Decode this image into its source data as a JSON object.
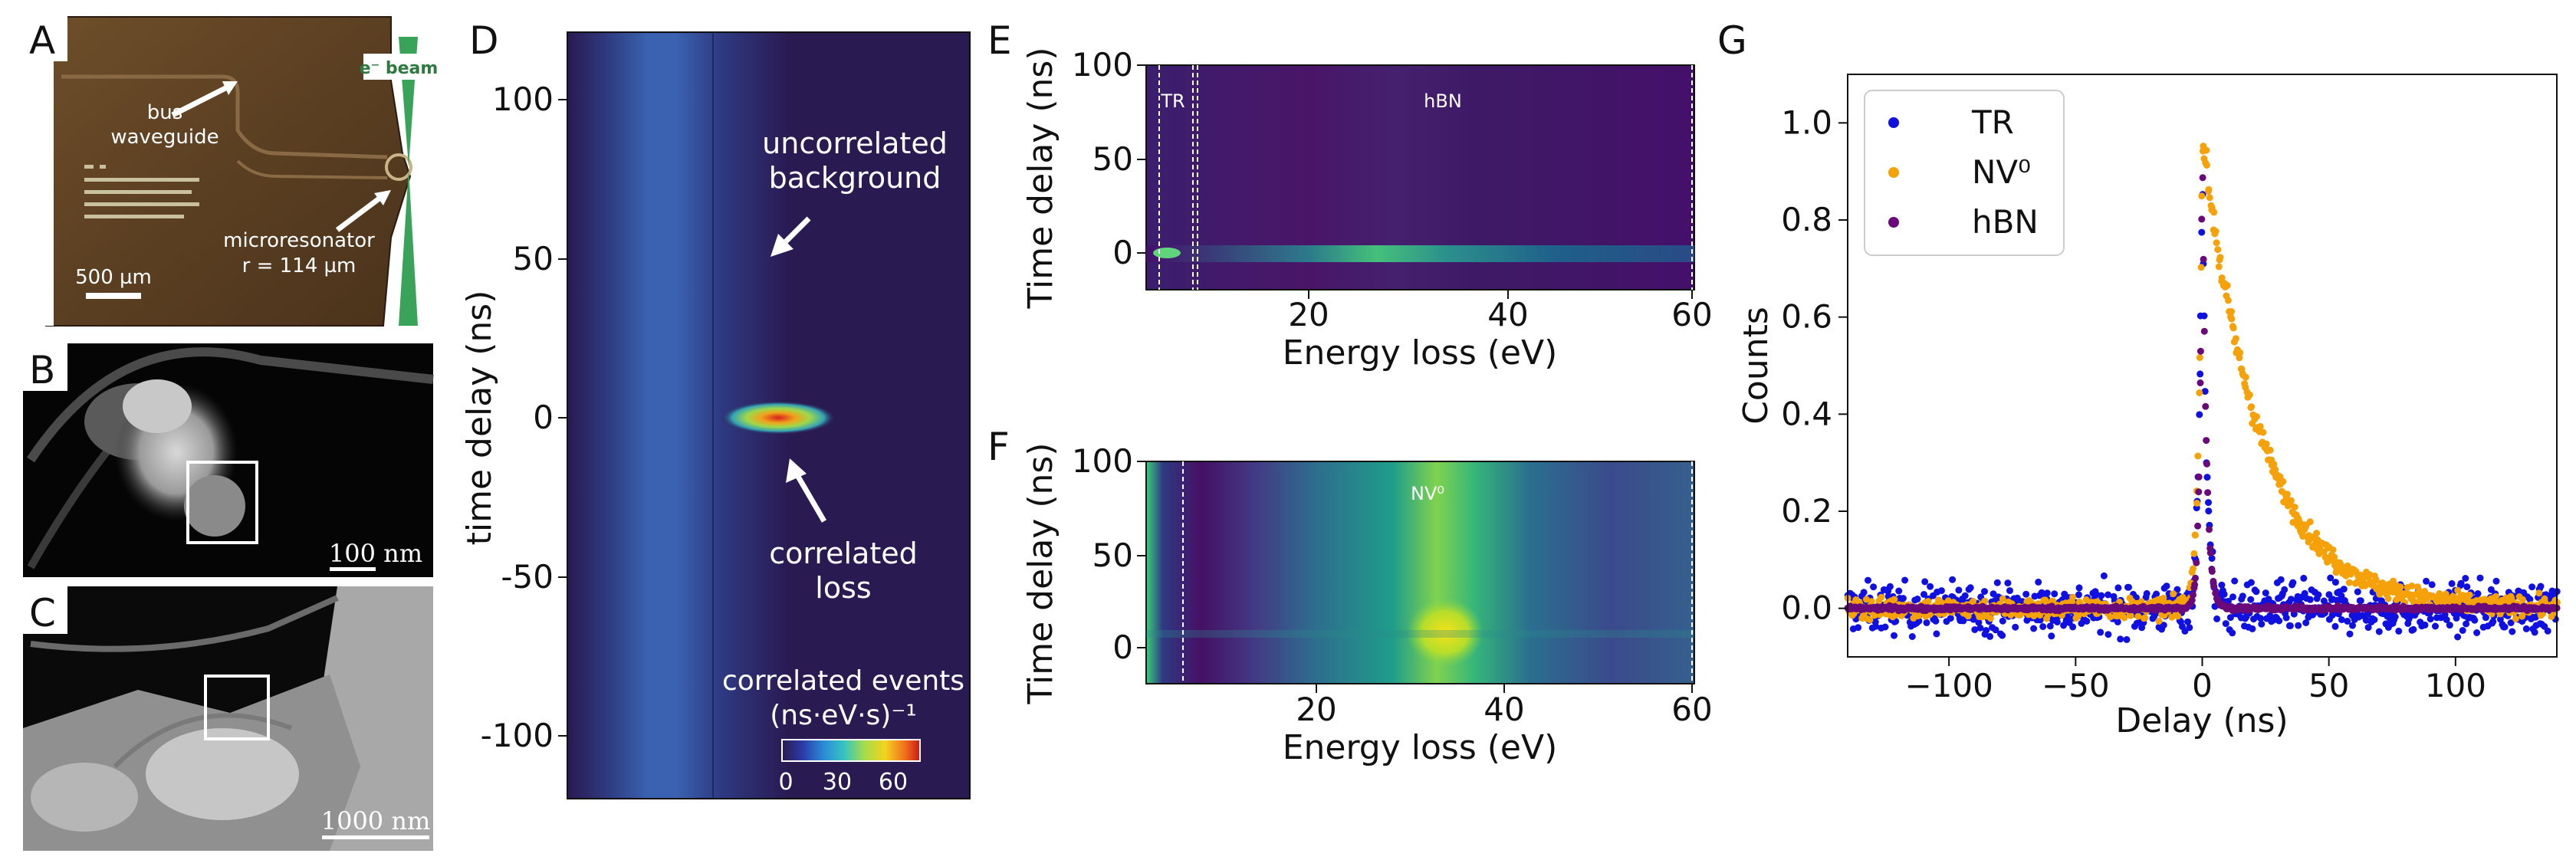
{
  "panels": {
    "A": {
      "label": "A",
      "ebeam": "e⁻ beam",
      "bus": [
        "bus",
        "waveguide"
      ],
      "micro": [
        "microresonator",
        "r = 114 µm"
      ],
      "scale": "500 µm"
    },
    "B": {
      "label": "B",
      "scale": "100 nm"
    },
    "C": {
      "label": "C",
      "scale": "1000 nm"
    },
    "D": {
      "label": "D",
      "ylabel": "time delay (ns)",
      "yticks": [
        "100",
        "50",
        "0",
        "-50",
        "-100"
      ],
      "ann_uncorr": [
        "uncorrelated",
        "background"
      ],
      "ann_corr": [
        "correlated",
        "loss"
      ],
      "cbar_title": [
        "correlated events",
        "(ns·eV·s)⁻¹"
      ],
      "cbar_ticks": [
        "0",
        "30",
        "60"
      ]
    },
    "E": {
      "label": "E",
      "ylabel": "Time delay (ns)",
      "xlabel": "Energy loss (eV)",
      "yticks": [
        "100",
        "50",
        "0"
      ],
      "xticks": [
        "20",
        "40",
        "60"
      ],
      "region_tr": "TR",
      "region_hbn": "hBN"
    },
    "F": {
      "label": "F",
      "ylabel": "Time delay (ns)",
      "xlabel": "Energy loss (eV)",
      "yticks": [
        "100",
        "50",
        "0"
      ],
      "xticks": [
        "20",
        "40",
        "60"
      ],
      "region_nv": "NV⁰"
    }
  },
  "chart_data": {
    "type": "scatter",
    "label": "G",
    "xlabel": "Delay (ns)",
    "ylabel": "Counts",
    "xlim": [
      -140,
      140
    ],
    "ylim": [
      -0.1,
      1.1
    ],
    "xticks": [
      "−100",
      "−50",
      "0",
      "50",
      "100"
    ],
    "xtick_values": [
      -100,
      -50,
      0,
      50,
      100
    ],
    "yticks": [
      "0.0",
      "0.2",
      "0.4",
      "0.6",
      "0.8",
      "1.0"
    ],
    "ytick_values": [
      0.0,
      0.2,
      0.4,
      0.6,
      0.8,
      1.0
    ],
    "legend_position": "top-left",
    "series": [
      {
        "name": "TR",
        "color": "#1010e0",
        "peak": 1.0,
        "rise_ns": 1.2,
        "decay_ns": 1.5,
        "baseline": 0.0,
        "noise": 0.05
      },
      {
        "name": "NV⁰",
        "color": "#f5a20a",
        "peak": 0.97,
        "rise_ns": 1.5,
        "decay_ns": 23,
        "baseline": 0.0,
        "noise": 0.02
      },
      {
        "name": "hBN",
        "color": "#6a0a7a",
        "peak": 1.0,
        "rise_ns": 1.0,
        "decay_ns": 1.5,
        "baseline": 0.0,
        "noise": 0.004
      }
    ]
  },
  "colors": {
    "viridis_dark": "#440154",
    "nv_fill": "#f5a20a",
    "green_beam": "#3aa35a"
  }
}
